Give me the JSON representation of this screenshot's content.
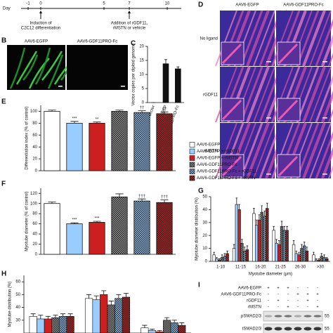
{
  "panel_labels": [
    "B",
    "C",
    "D",
    "E",
    "F",
    "G",
    "H",
    "I"
  ],
  "timeline": {
    "label": "Day",
    "ticks": [
      -1,
      0,
      5,
      7,
      10
    ],
    "annotations": [
      null,
      [
        "Induction of",
        "C2C12 differentiation"
      ],
      null,
      [
        "Addition of rGDF11,",
        "rMSTN or vehicle"
      ],
      null
    ]
  },
  "images_b": {
    "titles": [
      "AAV6-EGFP",
      "AAV6-GDF11PRO-Fc"
    ]
  },
  "images_d": {
    "titles": [
      "AAV6-EGFP",
      "AAV6-GDF11PRO-Fc"
    ],
    "rows": [
      "No ligand",
      "rGDF11",
      "rMSTN"
    ]
  },
  "blot": {
    "rows": [
      {
        "label": "AAV6-EGFP",
        "signs": [
          "+",
          "+",
          "+",
          "-",
          "-",
          "-"
        ]
      },
      {
        "label": "AAV6-GDF11PRO-Fc",
        "signs": [
          "-",
          "-",
          "-",
          "+",
          "+",
          "+"
        ]
      },
      {
        "label": "rGDF11",
        "signs": [
          "-",
          "+",
          "-",
          "-",
          "+",
          "-"
        ]
      },
      {
        "label": "rMSTN",
        "signs": [
          "-",
          "-",
          "+",
          "-",
          "-",
          "+"
        ]
      }
    ],
    "bands": [
      {
        "label": "pSMAD2/3",
        "marker": "55"
      },
      {
        "label": "tSMAD2/3",
        "marker": "55"
      }
    ]
  },
  "chart_data": [
    {
      "type": "bar",
      "ylabel": "Vector copies per diploid genome",
      "categories": [
        "No vector",
        "AAV6-EGFP",
        "AAV6-GDF11PRO-Fc"
      ],
      "values": [
        0,
        13.8,
        12
      ],
      "errors": [
        0,
        1.5,
        0.7
      ],
      "color": "#111111",
      "ylim": [
        0,
        20
      ],
      "yticks": [
        0,
        5,
        10,
        15,
        20
      ]
    },
    {
      "type": "bar",
      "ylabel": "Differentiation index (% of control)",
      "values": [
        100,
        80,
        80,
        100,
        98,
        96
      ],
      "errors": [
        2,
        3,
        2,
        2,
        3,
        3
      ],
      "annotations": [
        null,
        "***",
        "**",
        null,
        "††",
        "††"
      ],
      "colors": [
        "#ffffff",
        "#99ccff",
        "#cc1f1f",
        "#9a9a9a",
        "#99ccff",
        "#cc1f1f"
      ],
      "hatch": [
        false,
        false,
        false,
        true,
        true,
        true
      ],
      "ylim": [
        0,
        110
      ],
      "yticks": [
        0,
        20,
        40,
        60,
        80,
        100
      ]
    },
    {
      "type": "bar",
      "ylabel": "Myotube diameter (% of control)",
      "values": [
        100,
        60,
        63,
        113,
        105,
        102
      ],
      "errors": [
        3,
        2,
        2,
        6,
        4,
        5
      ],
      "annotations": [
        null,
        "***",
        "***",
        null,
        "†††",
        "†††"
      ],
      "colors": [
        "#ffffff",
        "#99ccff",
        "#cc1f1f",
        "#9a9a9a",
        "#99ccff",
        "#cc1f1f"
      ],
      "hatch": [
        false,
        false,
        false,
        true,
        true,
        true
      ],
      "ylim": [
        0,
        130
      ],
      "yticks": [
        0,
        20,
        40,
        60,
        80,
        100,
        120
      ]
    },
    {
      "type": "grouped_bar",
      "xlabel": "Myotube diameter (μm)",
      "ylabel": "Myotube diameter distribution (%)",
      "categories": [
        "1-10",
        "11-15",
        "16-20",
        "21-25",
        "26-30",
        ">30"
      ],
      "ylim": [
        0,
        50
      ],
      "yticks": [
        0,
        10,
        20,
        30,
        40,
        50
      ],
      "series": [
        {
          "name": "AAV6-EGFP",
          "color": "#ffffff",
          "hatch": false,
          "values": [
            5,
            10,
            37,
            24,
            13,
            5
          ],
          "errors": [
            2,
            3,
            4,
            3,
            3,
            2
          ]
        },
        {
          "name": "AAV6-EGFP + rGDF11",
          "color": "#99ccff",
          "hatch": false,
          "values": [
            2,
            44,
            28,
            14,
            6,
            1
          ],
          "errors": [
            1,
            5,
            4,
            3,
            2,
            1
          ]
        },
        {
          "name": "AAV6-EGFP + rMSTN",
          "color": "#cc1f1f",
          "hatch": false,
          "values": [
            1,
            40,
            32,
            13,
            5,
            1
          ],
          "errors": [
            1,
            4,
            4,
            3,
            2,
            1
          ]
        },
        {
          "name": "AAV6-GDF11PRO-Fc",
          "color": "#9a9a9a",
          "hatch": true,
          "values": [
            3,
            14,
            38,
            27,
            10,
            4
          ],
          "errors": [
            2,
            3,
            5,
            4,
            3,
            2
          ]
        },
        {
          "name": "AAV6-GDF11PRO-Fc + rGDF11",
          "color": "#99ccff",
          "hatch": true,
          "values": [
            4,
            8,
            35,
            24,
            12,
            3
          ],
          "errors": [
            2,
            3,
            4,
            3,
            3,
            2
          ]
        },
        {
          "name": "AAV6-GDF11PRO-Fc + rMSTN",
          "color": "#cc1f1f",
          "hatch": true,
          "values": [
            6,
            9,
            41,
            24,
            8,
            2
          ],
          "errors": [
            2,
            3,
            4,
            3,
            3,
            1
          ]
        }
      ]
    },
    {
      "type": "grouped_bar",
      "ylabel": "Myotube distribution (%)",
      "categories": [
        null,
        null,
        null
      ],
      "ylim": [
        20,
        65
      ],
      "yticks": [
        30,
        40,
        50,
        60
      ],
      "series": [
        {
          "color": "#ffffff",
          "hatch": false,
          "values": [
            33,
            47,
            24
          ],
          "errors": [
            2,
            3,
            2
          ]
        },
        {
          "color": "#99ccff",
          "hatch": false,
          "values": [
            31,
            46,
            22
          ],
          "errors": [
            3,
            3,
            1
          ]
        },
        {
          "color": "#cc1f1f",
          "hatch": false,
          "values": [
            31,
            50,
            21
          ],
          "errors": [
            2,
            3,
            1
          ]
        },
        {
          "color": "#9a9a9a",
          "hatch": true,
          "values": [
            32,
            42,
            30
          ],
          "errors": [
            2,
            3,
            2
          ]
        },
        {
          "color": "#99ccff",
          "hatch": true,
          "values": [
            33,
            47,
            28
          ],
          "errors": [
            2,
            3,
            2
          ]
        },
        {
          "color": "#cc1f1f",
          "hatch": true,
          "values": [
            33,
            48,
            26
          ],
          "errors": [
            2,
            3,
            2
          ]
        }
      ]
    }
  ]
}
